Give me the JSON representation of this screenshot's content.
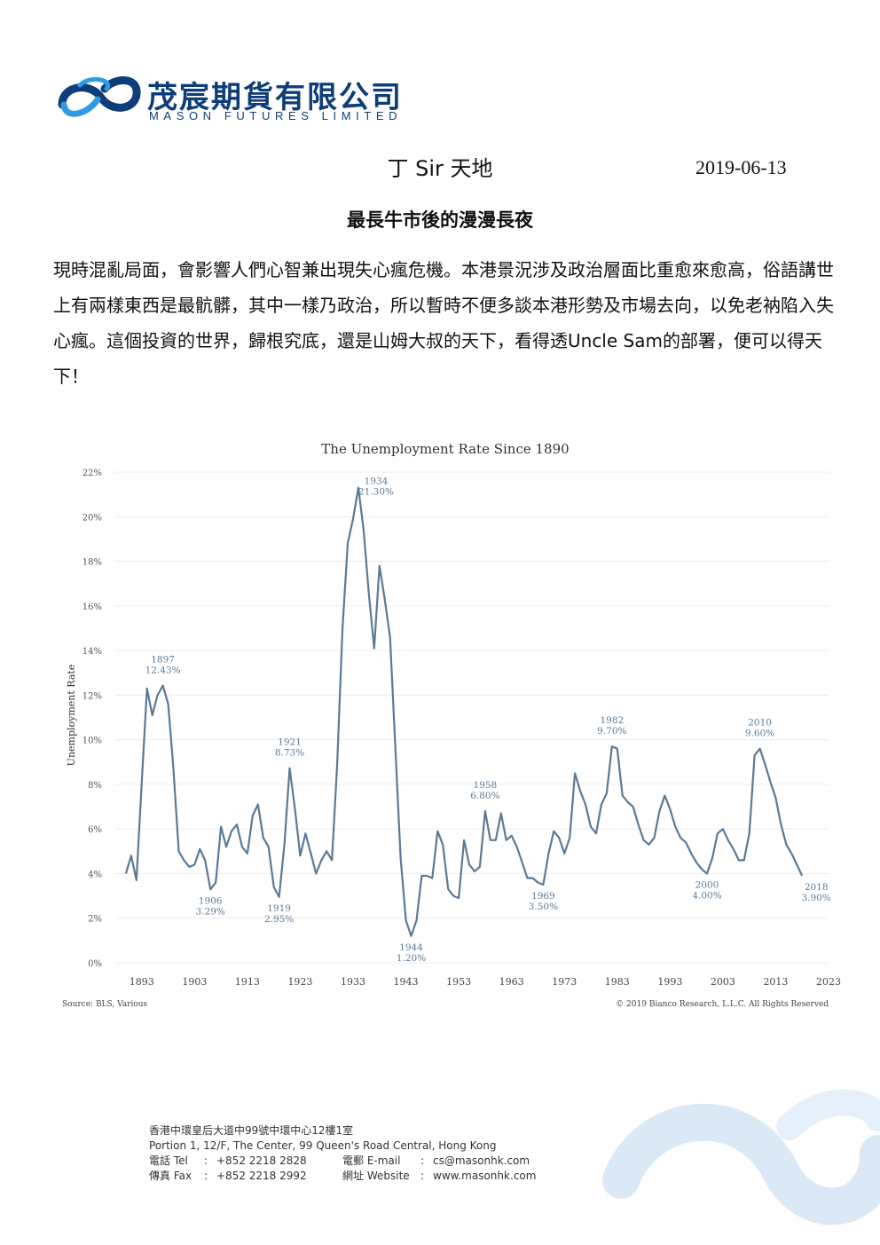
{
  "company": {
    "name_cn": "茂宸期貨有限公司",
    "name_en": "MASON FUTURES LIMITED",
    "brand_color": "#0e3d7a",
    "logo_icon": "infinity-ribbon-logo"
  },
  "article": {
    "column": "丁 Sir 天地",
    "date": "2019-06-13",
    "headline": "最長牛市後的漫漫長夜",
    "body": "現時混亂局面，會影響人們心智兼出現失心瘋危機。本港景況涉及政治層面比重愈來愈高，俗語講世上有兩樣東西是最骯髒，其中一樣乃政治，所以暫時不便多談本港形勢及市場去向，以免老衲陷入失心瘋。這個投資的世界，歸根究底，還是山姆大叔的天下，看得透Uncle Sam的部署，便可以得天下！"
  },
  "chart_data": {
    "type": "line",
    "title": "The Unemployment Rate Since 1890",
    "ylabel": "Unemployment Rate",
    "xlabel": "",
    "xlim": [
      1888,
      2023
    ],
    "ylim": [
      0,
      22
    ],
    "x_ticks": [
      "1893",
      "1903",
      "1913",
      "1923",
      "1933",
      "1943",
      "1953",
      "1963",
      "1973",
      "1983",
      "1993",
      "2003",
      "2013",
      "2023"
    ],
    "y_ticks": [
      "0%",
      "2%",
      "4%",
      "6%",
      "8%",
      "10%",
      "12%",
      "14%",
      "16%",
      "18%",
      "20%",
      "22%"
    ],
    "grid": "horizontal",
    "line_color": "#5b7a96",
    "source": "Source: BLS, Various",
    "copyright": "© 2019 Bianco Research, L.L.C. All Rights Reserved",
    "annotations": [
      {
        "year": "1897",
        "value": "12.43%",
        "x": 1897,
        "y": 12.43,
        "pos": "above"
      },
      {
        "year": "1906",
        "value": "3.29%",
        "x": 1906,
        "y": 3.29,
        "pos": "below"
      },
      {
        "year": "1919",
        "value": "2.95%",
        "x": 1919,
        "y": 2.95,
        "pos": "below"
      },
      {
        "year": "1921",
        "value": "8.73%",
        "x": 1921,
        "y": 8.73,
        "pos": "above"
      },
      {
        "year": "1934",
        "value": "21.30%",
        "x": 1933,
        "y": 21.3,
        "pos": "right"
      },
      {
        "year": "1944",
        "value": "1.20%",
        "x": 1944,
        "y": 1.2,
        "pos": "below"
      },
      {
        "year": "1958",
        "value": "6.80%",
        "x": 1958,
        "y": 6.8,
        "pos": "above"
      },
      {
        "year": "1969",
        "value": "3.50%",
        "x": 1969,
        "y": 3.5,
        "pos": "below"
      },
      {
        "year": "1982",
        "value": "9.70%",
        "x": 1982,
        "y": 9.7,
        "pos": "above"
      },
      {
        "year": "2000",
        "value": "4.00%",
        "x": 2000,
        "y": 4.0,
        "pos": "below"
      },
      {
        "year": "2010",
        "value": "9.60%",
        "x": 2010,
        "y": 9.6,
        "pos": "above"
      },
      {
        "year": "2018",
        "value": "3.90%",
        "x": 2018,
        "y": 3.9,
        "pos": "right-below"
      }
    ],
    "series": [
      {
        "x": [
          1890,
          1891,
          1892,
          1893,
          1894,
          1895,
          1896,
          1897,
          1898,
          1899,
          1900,
          1901,
          1902,
          1903,
          1904,
          1905,
          1906,
          1907,
          1908,
          1909,
          1910,
          1911,
          1912,
          1913,
          1914,
          1915,
          1916,
          1917,
          1918,
          1919,
          1920,
          1921,
          1922,
          1923,
          1924,
          1925,
          1926,
          1927,
          1928,
          1929,
          1930,
          1931,
          1932,
          1933,
          1934,
          1935,
          1936,
          1937,
          1938,
          1939,
          1940,
          1941,
          1942,
          1943,
          1944,
          1945,
          1946,
          1947,
          1948,
          1949,
          1950,
          1951,
          1952,
          1953,
          1954,
          1955,
          1956,
          1957,
          1958,
          1959,
          1960,
          1961,
          1962,
          1963,
          1964,
          1965,
          1966,
          1967,
          1968,
          1969,
          1970,
          1971,
          1972,
          1973,
          1974,
          1975,
          1976,
          1977,
          1978,
          1979,
          1980,
          1981,
          1982,
          1983,
          1984,
          1985,
          1986,
          1987,
          1988,
          1989,
          1990,
          1991,
          1992,
          1993,
          1994,
          1995,
          1996,
          1997,
          1998,
          1999,
          2000,
          2001,
          2002,
          2003,
          2004,
          2005,
          2006,
          2007,
          2008,
          2009,
          2010,
          2011,
          2012,
          2013,
          2014,
          2015,
          2016,
          2017,
          2018
        ],
        "values": [
          4.0,
          4.8,
          3.7,
          8.1,
          12.3,
          11.1,
          12.0,
          12.43,
          11.6,
          8.7,
          5.0,
          4.6,
          4.3,
          4.4,
          5.1,
          4.6,
          3.29,
          3.6,
          6.1,
          5.2,
          5.9,
          6.2,
          5.2,
          4.9,
          6.6,
          7.1,
          5.6,
          5.2,
          3.4,
          2.95,
          5.3,
          8.73,
          6.9,
          4.8,
          5.8,
          4.9,
          4.0,
          4.6,
          5.0,
          4.6,
          8.9,
          15.0,
          18.8,
          19.9,
          21.3,
          19.4,
          16.5,
          14.1,
          17.8,
          16.3,
          14.6,
          9.7,
          4.7,
          1.9,
          1.2,
          1.9,
          3.9,
          3.9,
          3.8,
          5.9,
          5.3,
          3.3,
          3.0,
          2.9,
          5.5,
          4.4,
          4.1,
          4.3,
          6.8,
          5.5,
          5.5,
          6.7,
          5.5,
          5.7,
          5.2,
          4.5,
          3.8,
          3.8,
          3.6,
          3.5,
          4.9,
          5.9,
          5.6,
          4.9,
          5.6,
          8.5,
          7.7,
          7.1,
          6.1,
          5.8,
          7.1,
          7.6,
          9.7,
          9.6,
          7.5,
          7.2,
          7.0,
          6.2,
          5.5,
          5.3,
          5.6,
          6.8,
          7.5,
          6.9,
          6.1,
          5.6,
          5.4,
          4.9,
          4.5,
          4.2,
          4.0,
          4.7,
          5.8,
          6.0,
          5.5,
          5.1,
          4.6,
          4.6,
          5.8,
          9.3,
          9.6,
          8.9,
          8.1,
          7.4,
          6.2,
          5.3,
          4.9,
          4.4,
          3.9
        ]
      }
    ]
  },
  "footer": {
    "address_cn": "香港中環皇后大道中99號中環中心12樓1室",
    "address_en": "Portion 1, 12/F, The Center, 99 Queen's Road Central, Hong Kong",
    "tel_label": "電話 Tel",
    "tel": "+852 2218 2828",
    "fax_label": "傳真 Fax",
    "fax": "+852 2218 2992",
    "email_label": "電郵 E-mail",
    "email": "cs@masonhk.com",
    "website_label": "網址 Website",
    "website": "www.masonhk.com",
    "separator": ":"
  }
}
